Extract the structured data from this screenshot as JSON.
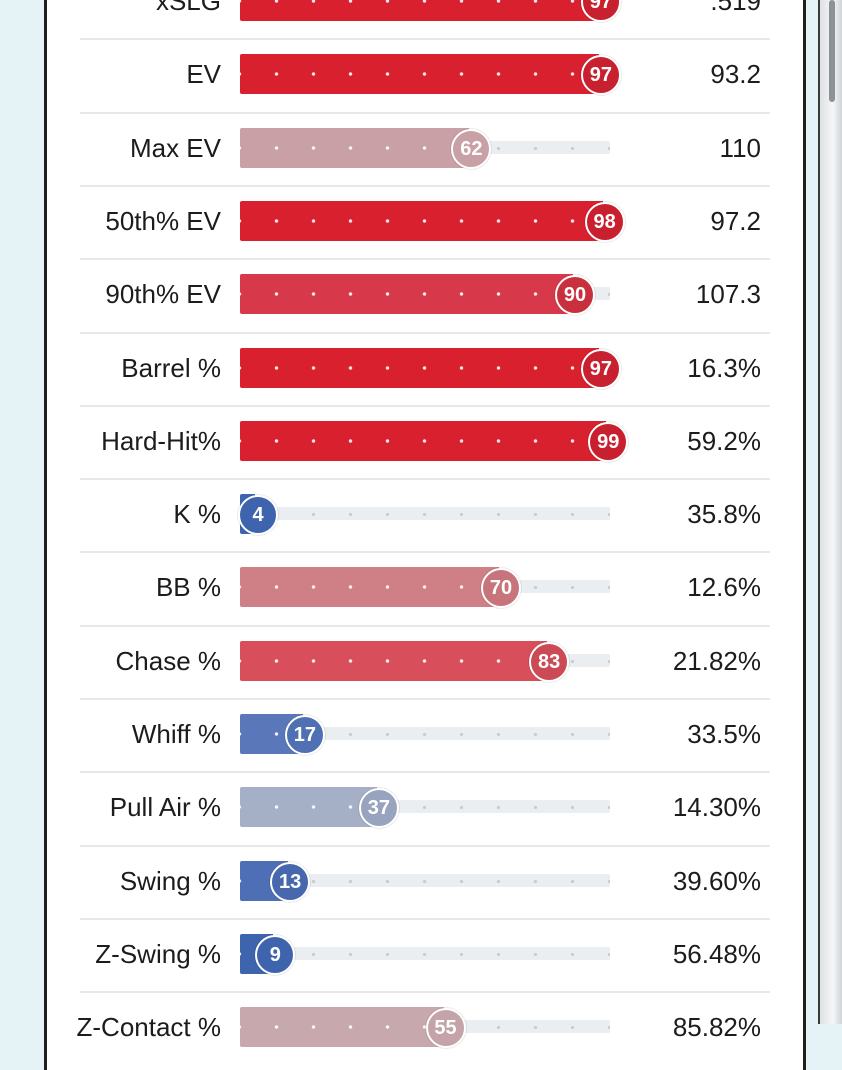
{
  "scrollbar": {
    "thumb_fraction": 0.1
  },
  "metrics": [
    {
      "label": "xSLG",
      "percentile": 97,
      "value": ".519",
      "fill": "#d9202e",
      "badge": "#c8202e"
    },
    {
      "label": "EV",
      "percentile": 97,
      "value": "93.2",
      "fill": "#d9202e",
      "badge": "#c8202e"
    },
    {
      "label": "Max EV",
      "percentile": 62,
      "value": "110",
      "fill": "#c9a0a5",
      "badge": "#c8a0a6"
    },
    {
      "label": "50th% EV",
      "percentile": 98,
      "value": "97.2",
      "fill": "#d9202e",
      "badge": "#c8202e"
    },
    {
      "label": "90th% EV",
      "percentile": 90,
      "value": "107.3",
      "fill": "#d8394a",
      "badge": "#c8303e"
    },
    {
      "label": "Barrel %",
      "percentile": 97,
      "value": "16.3%",
      "fill": "#d9202e",
      "badge": "#c8202e"
    },
    {
      "label": "Hard-Hit%",
      "percentile": 99,
      "value": "59.2%",
      "fill": "#d9202e",
      "badge": "#c8202e"
    },
    {
      "label": "K %",
      "percentile": 4,
      "value": "35.8%",
      "fill": "#3f64ae",
      "badge": "#3f64ae"
    },
    {
      "label": "BB %",
      "percentile": 70,
      "value": "12.6%",
      "fill": "#cf7f86",
      "badge": "#c8747c"
    },
    {
      "label": "Chase %",
      "percentile": 83,
      "value": "21.82%",
      "fill": "#d84f5b",
      "badge": "#cc4a55"
    },
    {
      "label": "Whiff %",
      "percentile": 17,
      "value": "33.5%",
      "fill": "#5a78b9",
      "badge": "#4f70b3"
    },
    {
      "label": "Pull Air %",
      "percentile": 37,
      "value": "14.30%",
      "fill": "#a5afc5",
      "badge": "#98a4bf"
    },
    {
      "label": "Swing %",
      "percentile": 13,
      "value": "39.60%",
      "fill": "#4e6fb5",
      "badge": "#4868ad"
    },
    {
      "label": "Z-Swing %",
      "percentile": 9,
      "value": "56.48%",
      "fill": "#3f64ae",
      "badge": "#3f64ae"
    },
    {
      "label": "Z-Contact %",
      "percentile": 55,
      "value": "85.82%",
      "fill": "#c7a9ad",
      "badge": "#c4a4a8"
    }
  ]
}
